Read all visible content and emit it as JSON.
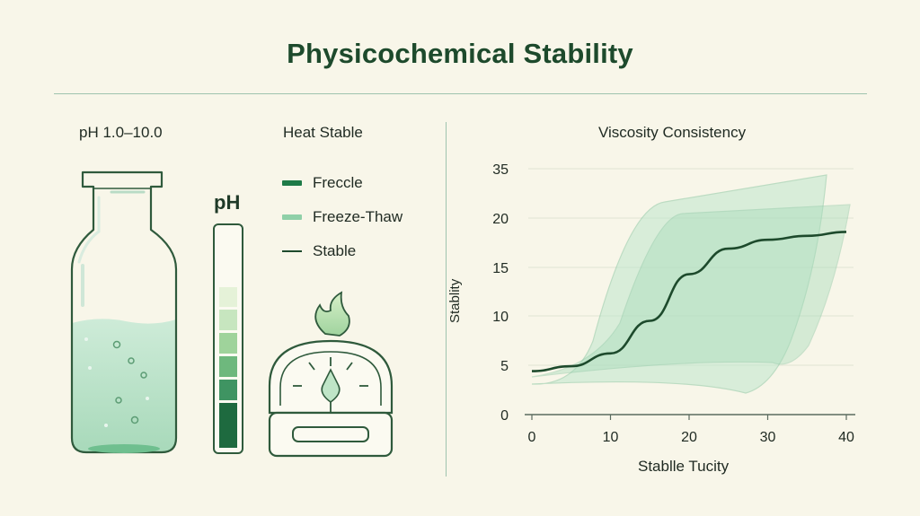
{
  "title": "Physicochemical Stability",
  "left": {
    "ph_range_label": "pH 1.0–10.0",
    "ph_scale_label": "pH",
    "ph_scale_levels": 6
  },
  "middle": {
    "heat_label": "Heat Stable",
    "legend": [
      {
        "label": "Freccle",
        "color": "#1e7a47",
        "kind": "swatch"
      },
      {
        "label": "Freeze-Thaw",
        "color": "#8fd0a8",
        "kind": "swatch"
      },
      {
        "label": "Stable",
        "color": "#1d4a2c",
        "kind": "line"
      }
    ]
  },
  "chart_data": {
    "type": "line",
    "title": "Viscosity Consistency",
    "xlabel": "Stablle Tucity",
    "ylabel": "Stablity",
    "xlim": [
      0,
      40
    ],
    "ylim": [
      0,
      35
    ],
    "x_ticks": [
      0,
      10,
      20,
      30,
      40
    ],
    "y_ticks": [
      0,
      5,
      10,
      15,
      20,
      35
    ],
    "series": [
      {
        "x": [
          0,
          5,
          10,
          15,
          20,
          25,
          30,
          35,
          40
        ],
        "y": [
          4.4,
          4.9,
          6.2,
          9.5,
          14.3,
          16.9,
          17.8,
          18.2,
          18.6
        ]
      }
    ]
  }
}
